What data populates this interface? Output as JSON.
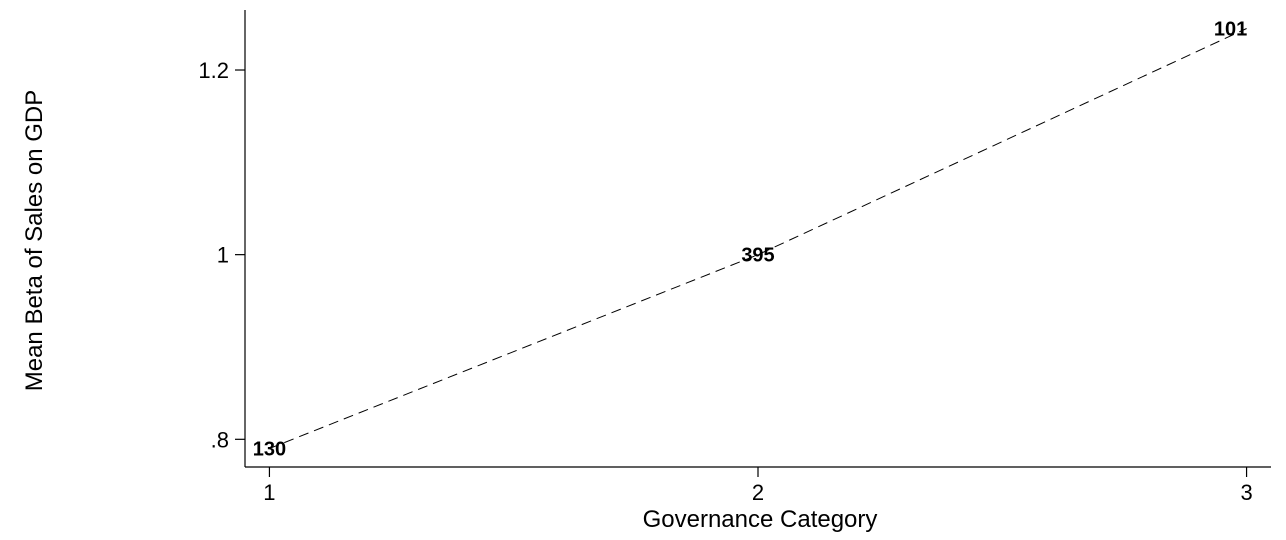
{
  "chart_data": {
    "type": "line",
    "title": "",
    "xlabel": "Governance Category",
    "ylabel": "Mean Beta of Sales on GDP",
    "x": [
      1,
      2,
      3
    ],
    "series": [
      {
        "values": [
          0.79,
          1.0,
          1.245
        ],
        "point_labels": [
          "130",
          "395",
          "101"
        ],
        "line_style": "dashed"
      }
    ],
    "x_ticks": [
      1,
      2,
      3
    ],
    "x_tick_labels": [
      "1",
      "2",
      "3"
    ],
    "y_ticks": [
      0.8,
      1.0,
      1.2
    ],
    "y_tick_labels": [
      ".8",
      "1",
      "1.2"
    ],
    "xlim": [
      0.95,
      3.05
    ],
    "ylim": [
      0.77,
      1.265
    ],
    "grid": false
  }
}
